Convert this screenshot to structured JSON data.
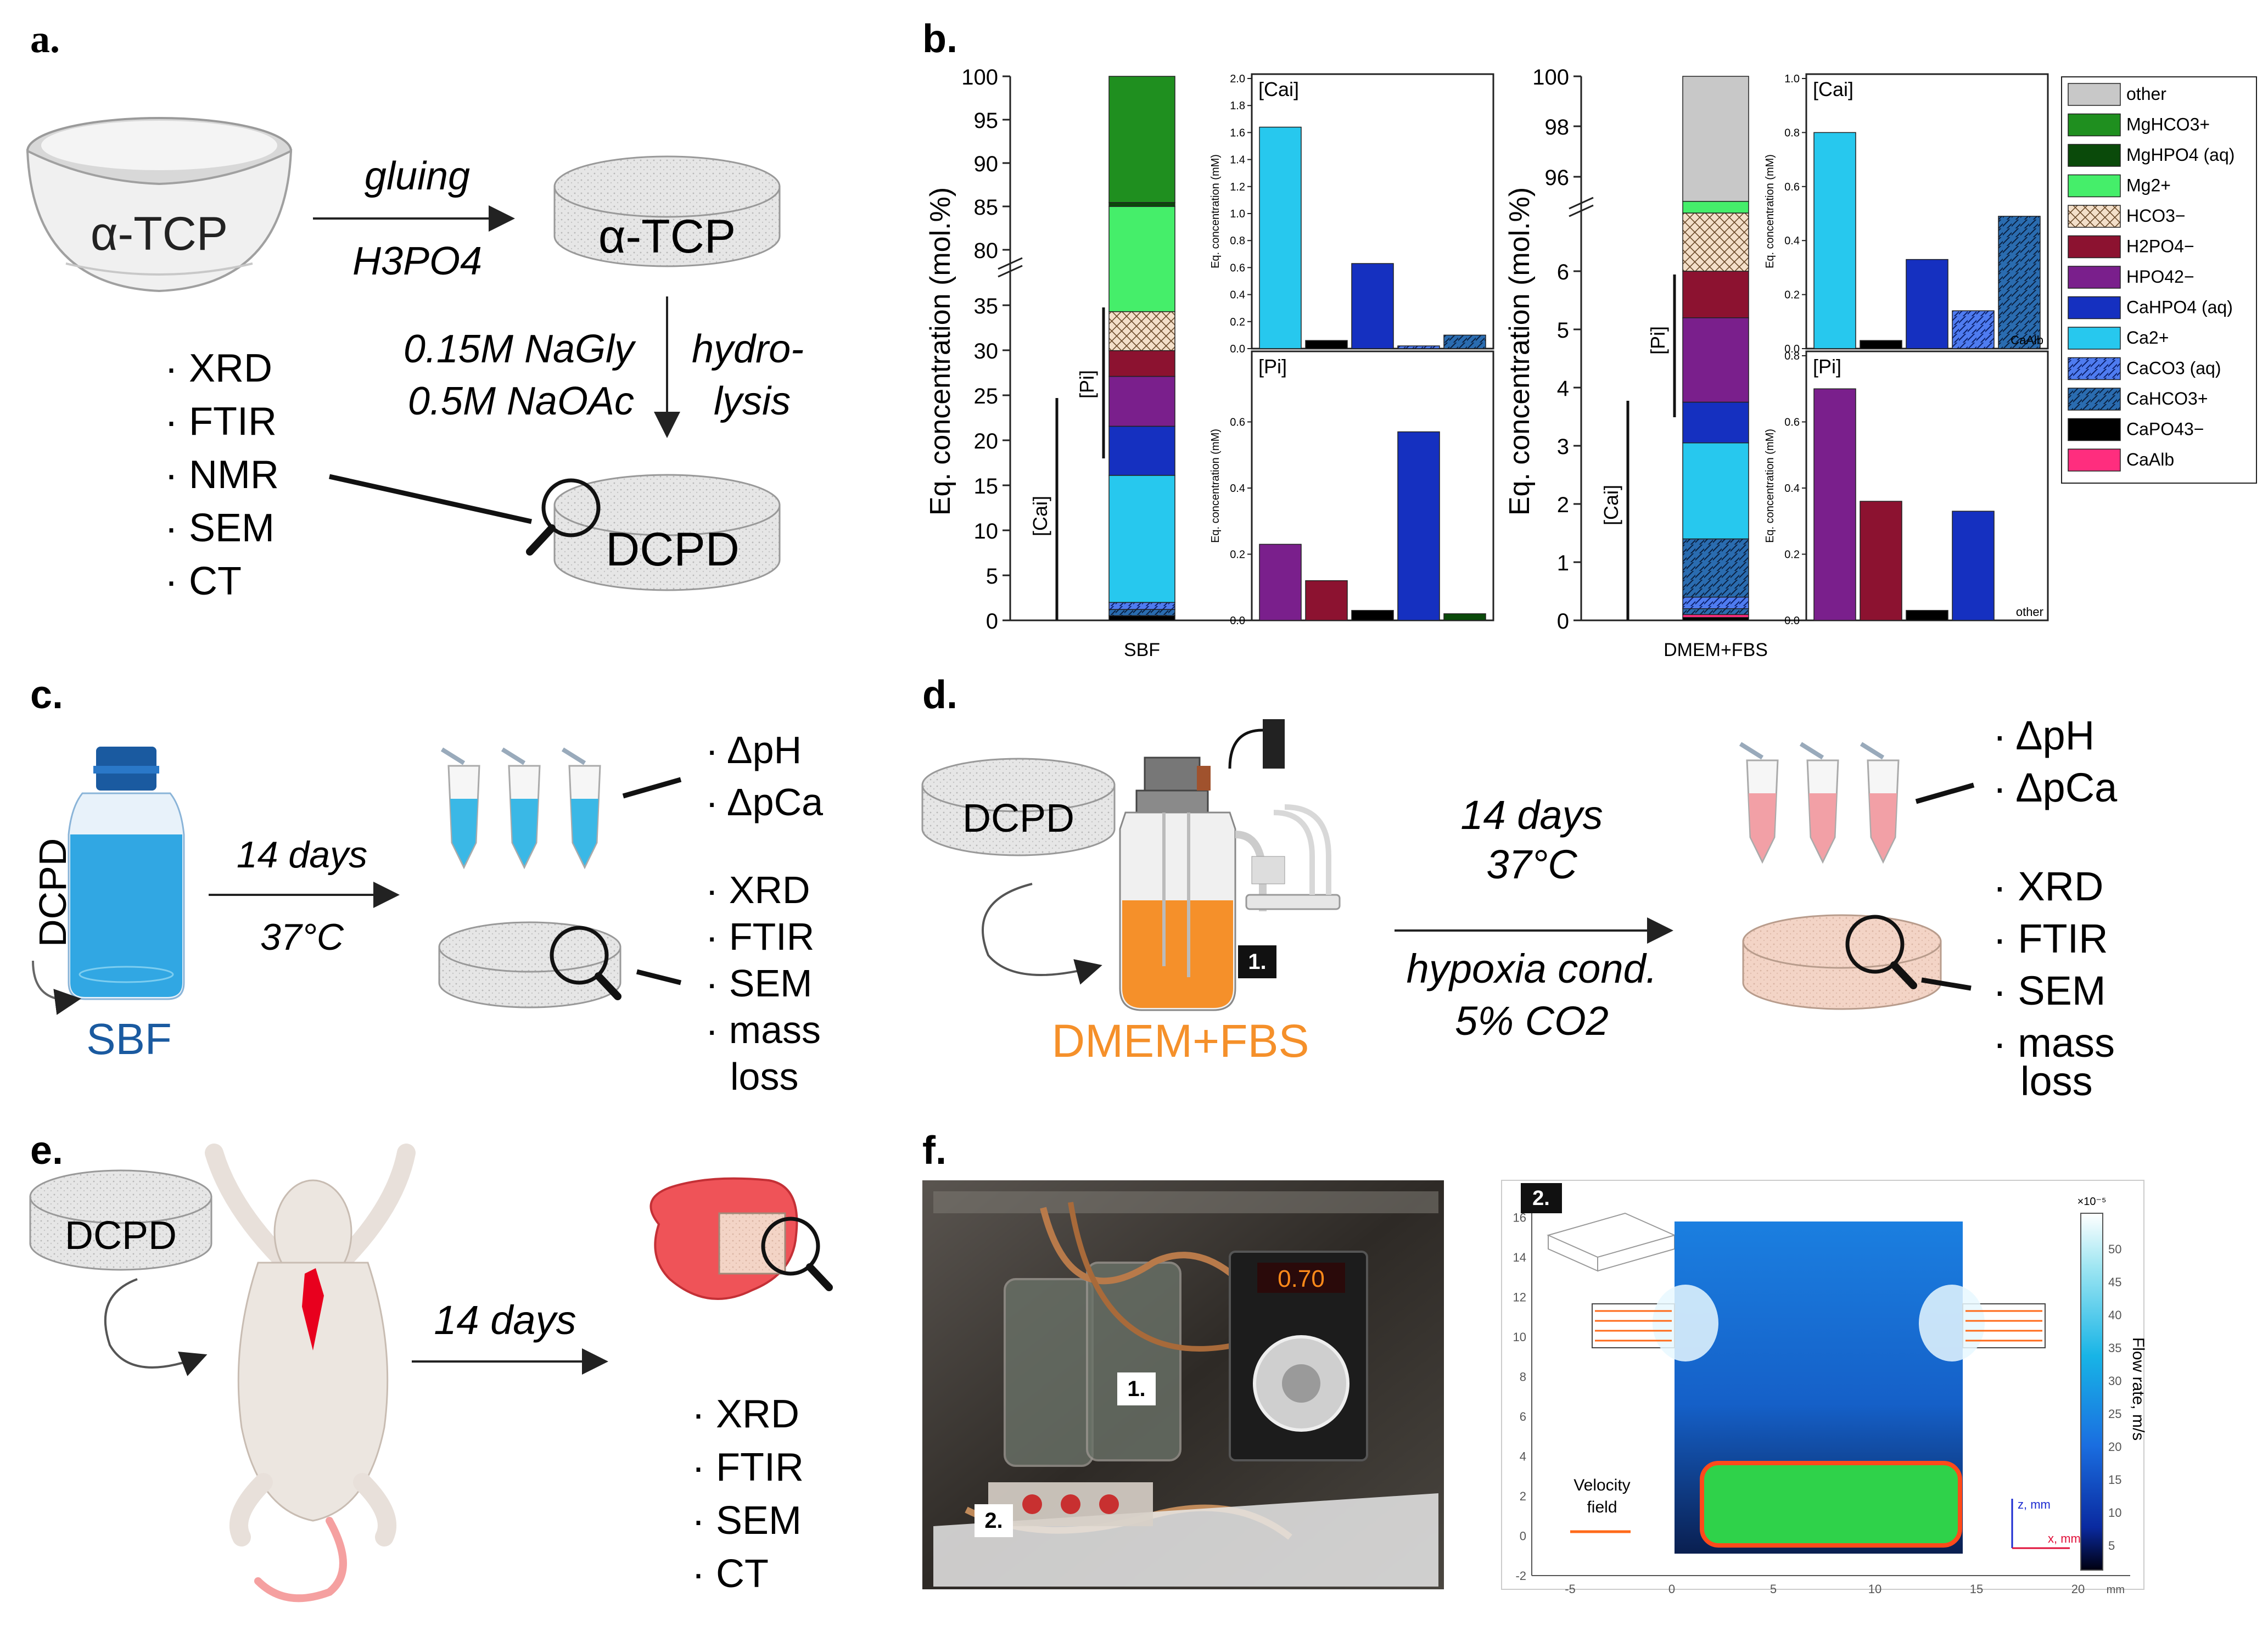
{
  "panel_labels": {
    "a": "a.",
    "b": "b.",
    "c": "c.",
    "d": "d.",
    "e": "e.",
    "f": "f."
  },
  "panel_a": {
    "bowl_label": "α-TCP",
    "disc_label": "α-TCP",
    "arrow_top_label": "gluing",
    "arrow_bottom_label": "H3PO4",
    "hydro_label_1": "0.15M NaGly",
    "hydro_label_2": "0.5M NaOAc",
    "hydrolysis_1": "hydro-",
    "hydrolysis_2": "lysis",
    "product_label": "DCPD",
    "methods": [
      "XRD",
      "FTIR",
      "NMR",
      "SEM",
      "CT"
    ]
  },
  "panel_b": {
    "legend": [
      {
        "name": "other",
        "color": "#c8c8c8",
        "pattern": "solid"
      },
      {
        "name": "MgHCO3+",
        "color": "#1f8f1f",
        "pattern": "solid"
      },
      {
        "name": "MgHPO4 (aq)",
        "color": "#0a4a0a",
        "pattern": "solid"
      },
      {
        "name": "Mg2+",
        "color": "#45ee6a",
        "pattern": "solid"
      },
      {
        "name": "HCO3−",
        "color": "#f3dfc9",
        "pattern": "cross"
      },
      {
        "name": "H2PO4−",
        "color": "#8c1230",
        "pattern": "solid"
      },
      {
        "name": "HPO42−",
        "color": "#7a1f8c",
        "pattern": "solid"
      },
      {
        "name": "CaHPO4 (aq)",
        "color": "#1530c0",
        "pattern": "solid"
      },
      {
        "name": "Ca2+",
        "color": "#27c8ee",
        "pattern": "solid"
      },
      {
        "name": "CaCO3 (aq)",
        "color": "#4f7cf0",
        "pattern": "hatch"
      },
      {
        "name": "CaHCO3+",
        "color": "#2a6cb0",
        "pattern": "hatch"
      },
      {
        "name": "CaPO43−",
        "color": "#000000",
        "pattern": "solid"
      },
      {
        "name": "CaAlb",
        "color": "#ff2d7e",
        "pattern": "solid"
      }
    ],
    "y_label": "Eq. concentration (mol.%)",
    "inset_y_label": "Eq. concentration (mM)",
    "ca_label": "[Cai]",
    "pi_label": "[Pi]",
    "sbf": {
      "category": "SBF",
      "y_ticks": [
        "0",
        "5",
        "10",
        "15",
        "20",
        "25",
        "30",
        "35",
        "80",
        "85",
        "90",
        "95",
        "100"
      ],
      "stack": [
        {
          "species": "CaPO43−",
          "value": 0.6
        },
        {
          "species": "CaHCO3+",
          "value": 0.8
        },
        {
          "species": "CaCO3 (aq)",
          "value": 0.9
        },
        {
          "species": "Ca2+",
          "value": 16.3
        },
        {
          "species": "CaHPO4 (aq)",
          "value": 6.3
        },
        {
          "species": "HPO42−",
          "value": 6.4
        },
        {
          "species": "H2PO4−",
          "value": 3.3
        },
        {
          "species": "HCO3−",
          "value": 5.0
        },
        {
          "species": "Mg2+",
          "value": 13.5
        },
        {
          "species": "MgHPO4 (aq)",
          "value": 0.5
        },
        {
          "species": "MgHCO3+",
          "value": 0.8
        }
      ],
      "inset_ca": {
        "ylim": [
          0,
          2.0
        ],
        "ticks": [
          "0.0",
          "0.2",
          "0.4",
          "0.6",
          "0.8",
          "1.0",
          "1.2",
          "1.4",
          "1.6",
          "1.8",
          "2.0"
        ],
        "bars": [
          {
            "species": "Ca2+",
            "value": 1.64
          },
          {
            "species": "CaPO43−",
            "value": 0.06
          },
          {
            "species": "CaHPO4 (aq)",
            "value": 0.63
          },
          {
            "species": "CaCO3 (aq)",
            "value": 0.02
          },
          {
            "species": "CaHCO3+",
            "value": 0.1
          }
        ]
      },
      "inset_p": {
        "ylim": [
          0,
          0.8
        ],
        "ticks": [
          "0.0",
          "0.2",
          "0.4",
          "0.6"
        ],
        "bars": [
          {
            "species": "HPO42−",
            "value": 0.23
          },
          {
            "species": "H2PO4−",
            "value": 0.12
          },
          {
            "species": "CaPO43−",
            "value": 0.03
          },
          {
            "species": "CaHPO4 (aq)",
            "value": 0.57
          },
          {
            "species": "MgHPO4 (aq)",
            "value": 0.02
          }
        ]
      }
    },
    "dmem": {
      "category": "DMEM+FBS",
      "y_ticks": [
        "0",
        "1",
        "2",
        "3",
        "4",
        "5",
        "6",
        "96",
        "98",
        "100"
      ],
      "stack": [
        {
          "species": "CaPO43−",
          "value": 0.05
        },
        {
          "species": "CaAlb",
          "value": 0.05
        },
        {
          "species": "CaHCO3+",
          "value": 0.1
        },
        {
          "species": "CaCO3 (aq)",
          "value": 0.2
        },
        {
          "species": "CaHCO3+",
          "value": 1.0
        },
        {
          "species": "Ca2+",
          "value": 1.65
        },
        {
          "species": "CaHPO4 (aq)",
          "value": 0.7
        },
        {
          "species": "HPO42−",
          "value": 1.45
        },
        {
          "species": "H2PO4−",
          "value": 0.8
        },
        {
          "species": "HCO3−",
          "value": 1.0
        },
        {
          "species": "Mg2+",
          "value": 0.2
        },
        {
          "species": "other",
          "value": 1.0
        }
      ],
      "inset_ca": {
        "ylim": [
          0,
          1.0
        ],
        "ticks": [
          "0.0",
          "0.2",
          "0.4",
          "0.6",
          "0.8",
          "1.0"
        ],
        "corner_label": "CaAlb",
        "bars": [
          {
            "species": "Ca2+",
            "value": 0.8
          },
          {
            "species": "CaPO43−",
            "value": 0.03
          },
          {
            "species": "CaHPO4 (aq)",
            "value": 0.33
          },
          {
            "species": "CaCO3 (aq)",
            "value": 0.14
          },
          {
            "species": "CaHCO3+",
            "value": 0.49
          }
        ]
      },
      "inset_p": {
        "ylim": [
          0,
          0.8
        ],
        "ticks": [
          "0.0",
          "0.2",
          "0.4",
          "0.6",
          "0.8"
        ],
        "corner_label": "other",
        "bars": [
          {
            "species": "HPO42−",
            "value": 0.7
          },
          {
            "species": "H2PO4−",
            "value": 0.36
          },
          {
            "species": "CaPO43−",
            "value": 0.03
          },
          {
            "species": "CaHPO4 (aq)",
            "value": 0.33
          }
        ]
      }
    }
  },
  "panel_c": {
    "sample_label": "DCPD",
    "medium_label": "SBF",
    "arrow_top": "14 days",
    "arrow_bottom": "37°C",
    "liquid_methods": [
      "ΔpH",
      "ΔpCa"
    ],
    "solid_methods": [
      "XRD",
      "FTIR",
      "SEM",
      "mass",
      "loss"
    ]
  },
  "panel_d": {
    "sample_label": "DCPD",
    "medium_label": "DMEM+FBS",
    "reactor_badge": "1.",
    "arrow_line1": "14 days",
    "arrow_line2": "37°C",
    "arrow_line3": "hypoxia cond.",
    "arrow_line4": "5% CO2",
    "liquid_methods": [
      "ΔpH",
      "ΔpCa"
    ],
    "solid_methods": [
      "XRD",
      "FTIR",
      "SEM",
      "mass",
      "loss"
    ]
  },
  "panel_e": {
    "sample_label": "DCPD",
    "arrow_label": "14 days",
    "methods": [
      "XRD",
      "FTIR",
      "SEM",
      "CT"
    ]
  },
  "panel_f": {
    "photo_label_1": "1.",
    "photo_label_2": "2.",
    "pump_display": "0.70",
    "sim_badge": "2.",
    "y_ticks": [
      "-2",
      "0",
      "2",
      "4",
      "6",
      "8",
      "10",
      "12",
      "14",
      "16"
    ],
    "x_ticks": [
      "-5",
      "0",
      "5",
      "10",
      "15",
      "20"
    ],
    "x_unit": "mm",
    "velocity_label_1": "Velocity",
    "velocity_label_2": "field",
    "axis_z": "z, mm",
    "axis_x": "x, mm",
    "colorbar_exponent": "×10⁻⁵",
    "colorbar_ticks": [
      "5",
      "10",
      "15",
      "20",
      "25",
      "30",
      "35",
      "40",
      "45",
      "50"
    ],
    "colorbar_label": "Flow rate, m/s"
  }
}
